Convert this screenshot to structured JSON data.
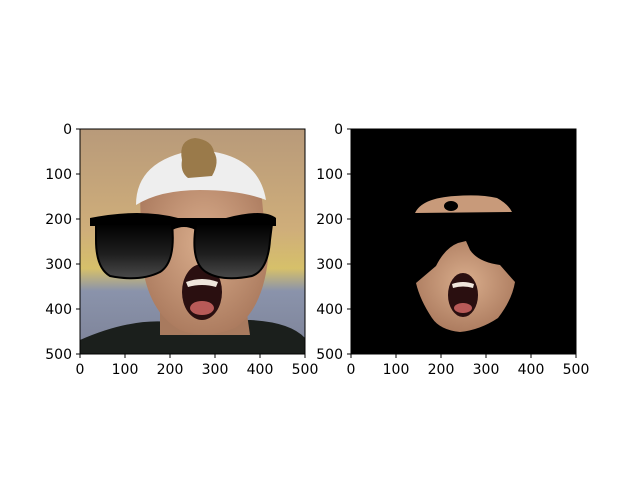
{
  "figure": {
    "background": "#ffffff"
  },
  "chart_data": [
    {
      "type": "image",
      "panel": "left",
      "content": "photo of a shouting man wearing a white cap with superimposed black sunglasses",
      "xlim": [
        0,
        500
      ],
      "ylim": [
        500,
        0
      ],
      "xticks": [
        0,
        100,
        200,
        300,
        400,
        500
      ],
      "yticks": [
        0,
        100,
        200,
        300,
        400,
        500
      ],
      "grid": false
    },
    {
      "type": "image",
      "panel": "right",
      "content": "face-segmentation mask: skin regions of the forehead band and the lower face on a black background",
      "background_color": "#000000",
      "xlim": [
        0,
        500
      ],
      "ylim": [
        500,
        0
      ],
      "xticks": [
        0,
        100,
        200,
        300,
        400,
        500
      ],
      "yticks": [
        0,
        100,
        200,
        300,
        400,
        500
      ],
      "grid": false
    }
  ],
  "colors": {
    "skin": "#c89a7a",
    "skin_shadow": "#9a6a50",
    "mouth": "#2a0f10",
    "tongue": "#b85a58",
    "teeth": "#efe6dc",
    "cap": "#eeeeee",
    "hair": "#9a7a4a",
    "shirt": "#1b1f1c",
    "lens": "#1a1a1a",
    "bg_blue": "#8a93ab",
    "bg_warm": "#d8b26a"
  }
}
